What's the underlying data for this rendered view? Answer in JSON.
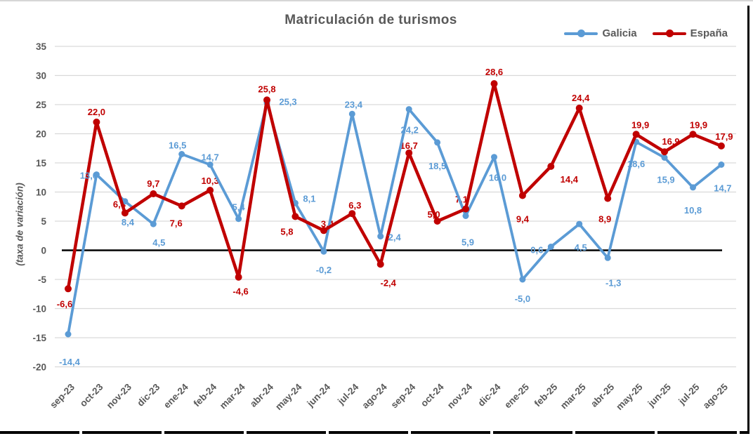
{
  "title": "Matriculación de turismos",
  "y_axis_title": "(taxa de variación)",
  "legend": {
    "items": [
      {
        "label": "Galicia",
        "color": "#5B9BD5"
      },
      {
        "label": "España",
        "color": "#C00000"
      }
    ]
  },
  "chart_data": {
    "type": "line",
    "title": "Matriculación de turismos",
    "ylabel": "(taxa de variación)",
    "ylim": [
      -20,
      35
    ],
    "yticks": [
      35,
      30,
      25,
      20,
      15,
      10,
      5,
      0,
      -5,
      -10,
      -15,
      -20
    ],
    "grid": true,
    "legend_position": "top-right",
    "categories": [
      "sep-23",
      "oct-23",
      "nov-23",
      "dic-23",
      "ene-24",
      "feb-24",
      "mar-24",
      "abr-24",
      "may-24",
      "jun-24",
      "jul-24",
      "ago-24",
      "sep-24",
      "oct-24",
      "nov-24",
      "dic-24",
      "ene-25",
      "feb-25",
      "mar-25",
      "abr-25",
      "may-25",
      "jun-25",
      "jul-25",
      "ago-25"
    ],
    "series": [
      {
        "name": "Galicia",
        "color": "#5B9BD5",
        "values": [
          -14.4,
          13.0,
          8.4,
          4.5,
          16.5,
          14.7,
          5.4,
          25.3,
          8.1,
          -0.2,
          23.4,
          2.4,
          24.2,
          18.5,
          5.9,
          16.0,
          -5.0,
          0.6,
          4.5,
          -1.3,
          18.6,
          15.9,
          10.8,
          14.7
        ],
        "labels": [
          "-14,4",
          "13,0",
          "8,4",
          "4,5",
          "16,5",
          "14,7",
          "5,4",
          "25,3",
          "8,1",
          "-0,2",
          "23,4",
          "2,4",
          "24,2",
          "18,5",
          "5,9",
          "16,0",
          "-5,0",
          "0,6",
          "4,5",
          "-1,3",
          "18,6",
          "15,9",
          "10,8",
          "14,7"
        ],
        "label_offsets": [
          [
            2,
            44
          ],
          [
            -11,
            6
          ],
          [
            4,
            34
          ],
          [
            8,
            31
          ],
          [
            -6,
            -8
          ],
          [
            0,
            -6
          ],
          [
            0,
            -12
          ],
          [
            30,
            3
          ],
          [
            20,
            -2
          ],
          [
            0,
            31
          ],
          [
            2,
            -9
          ],
          [
            20,
            6
          ],
          [
            1,
            34
          ],
          [
            0,
            38
          ],
          [
            3,
            42
          ],
          [
            5,
            34
          ],
          [
            0,
            32
          ],
          [
            -20,
            9
          ],
          [
            2,
            38
          ],
          [
            8,
            40
          ],
          [
            0,
            36
          ],
          [
            2,
            36
          ],
          [
            0,
            37
          ],
          [
            2,
            38
          ]
        ]
      },
      {
        "name": "España",
        "color": "#C00000",
        "values": [
          -6.6,
          22.0,
          6.4,
          9.7,
          7.6,
          10.3,
          -4.6,
          25.8,
          5.8,
          3.4,
          6.3,
          -2.4,
          16.7,
          5.0,
          7.1,
          28.6,
          9.4,
          14.4,
          24.4,
          8.9,
          19.9,
          16.9,
          19.9,
          17.9
        ],
        "labels": [
          "-6,6",
          "22,0",
          "6,4",
          "9,7",
          "7,6",
          "10,3",
          "-4,6",
          "25,8",
          "5,8",
          "3,4",
          "6,3",
          "-2,4",
          "16,7",
          "5,0",
          "7,1",
          "28,6",
          "9,4",
          "14,4",
          "24,4",
          "8,9",
          "19,9",
          "16,9",
          "19,9",
          "17,9"
        ],
        "label_offsets": [
          [
            -5,
            26
          ],
          [
            0,
            -10
          ],
          [
            -8,
            -8
          ],
          [
            0,
            -10
          ],
          [
            -8,
            29
          ],
          [
            0,
            -9
          ],
          [
            3,
            25
          ],
          [
            0,
            -11
          ],
          [
            -12,
            26
          ],
          [
            5,
            -5
          ],
          [
            4,
            -7
          ],
          [
            11,
            31
          ],
          [
            0,
            -6
          ],
          [
            -5,
            -5
          ],
          [
            -6,
            -9
          ],
          [
            0,
            -12
          ],
          [
            0,
            38
          ],
          [
            26,
            23
          ],
          [
            2,
            -10
          ],
          [
            -4,
            34
          ],
          [
            6,
            -9
          ],
          [
            9,
            -10
          ],
          [
            8,
            -9
          ],
          [
            4,
            -9
          ]
        ]
      }
    ],
    "colors": {
      "grid": "#D9D9D9",
      "zero_line": "#000000",
      "tick_text": "#595959",
      "title_text": "#595959"
    }
  }
}
